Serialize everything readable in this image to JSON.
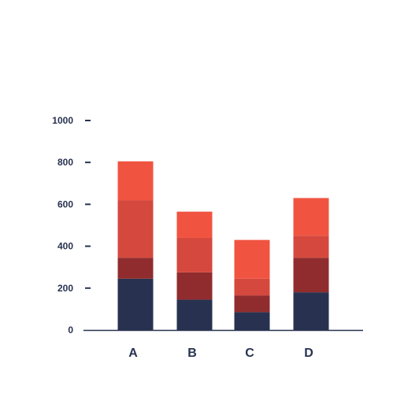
{
  "chart_data": {
    "type": "bar",
    "stacked": true,
    "categories": [
      "A",
      "B",
      "C",
      "D"
    ],
    "series": [
      {
        "values": [
          245,
          145,
          85,
          180
        ],
        "color": "#283250"
      },
      {
        "values": [
          100,
          130,
          80,
          165
        ],
        "color": "#902c2d"
      },
      {
        "values": [
          275,
          165,
          80,
          105
        ],
        "color": "#d5483e"
      },
      {
        "values": [
          185,
          125,
          185,
          180
        ],
        "color": "#f05440"
      }
    ],
    "ylim": [
      0,
      1000
    ],
    "yticks": [
      "0",
      "200",
      "400",
      "600",
      "800",
      "1000"
    ],
    "grid": false,
    "colors": {
      "axis": "#283250",
      "text": "#283250"
    }
  }
}
